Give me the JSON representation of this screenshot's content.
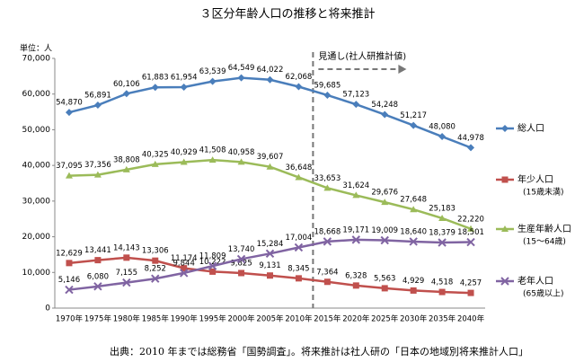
{
  "chart_data": {
    "type": "line",
    "title": "３区分年齢人口の推移と将来推計",
    "y_unit": "単位：人",
    "categories": [
      "1970年",
      "1975年",
      "1980年",
      "1985年",
      "1990年",
      "1995年",
      "2000年",
      "2005年",
      "2010年",
      "2015年",
      "2020年",
      "2025年",
      "2030年",
      "2035年",
      "2040年"
    ],
    "ylim": [
      0,
      70000
    ],
    "yticks": [
      0,
      {
        "value": 10000,
        "label": "10,000"
      },
      {
        "value": 20000,
        "label": "20,000"
      },
      {
        "value": 30000,
        "label": "30,000"
      },
      {
        "value": 40000,
        "label": "40,000"
      },
      {
        "value": 50000,
        "label": "50,000"
      },
      {
        "value": 60000,
        "label": "60,000"
      },
      {
        "value": 70000,
        "label": "70,000"
      }
    ],
    "grid": false,
    "series": [
      {
        "name": "総人口",
        "color": "#4a7ebb",
        "marker": "diamond",
        "values": [
          54870,
          56891,
          60106,
          61883,
          61954,
          63539,
          64549,
          64022,
          62068,
          59685,
          57123,
          54248,
          51217,
          48080,
          44978
        ],
        "value_labels": [
          "54,870",
          "56,891",
          "60,106",
          "61,883",
          "61,954",
          "63,539",
          "64,549",
          "64,022",
          "62,068",
          "59,685",
          "57,123",
          "54,248",
          "51,217",
          "48,080",
          "44,978"
        ]
      },
      {
        "name": "年少人口",
        "legend_note": "(15歳未満)",
        "color": "#c0504d",
        "marker": "square",
        "values": [
          12629,
          13441,
          14143,
          13306,
          11174,
          10222,
          9825,
          9131,
          8345,
          7364,
          6328,
          5563,
          4929,
          4518,
          4257
        ],
        "value_labels": [
          "12,629",
          "13,441",
          "14,143",
          "13,306",
          "11,174",
          "10,222",
          "9,825",
          "9,131",
          "8,345",
          "7,364",
          "6,328",
          "5,563",
          "4,929",
          "4,518",
          "4,257"
        ]
      },
      {
        "name": "生産年齢人口",
        "legend_note": "(15～64歳)",
        "color": "#9bbb59",
        "marker": "triangle",
        "values": [
          37095,
          37356,
          38808,
          40325,
          40929,
          41508,
          40958,
          39607,
          36648,
          33653,
          31624,
          29676,
          27648,
          25183,
          22220
        ],
        "value_labels": [
          "37,095",
          "37,356",
          "38,808",
          "40,325",
          "40,929",
          "41,508",
          "40,958",
          "39,607",
          "36,648",
          "33,653",
          "31,624",
          "29,676",
          "27,648",
          "25,183",
          "22,220"
        ]
      },
      {
        "name": "老年人口",
        "legend_note": "(65歳以上)",
        "color": "#8064a2",
        "marker": "cross",
        "values": [
          5146,
          6080,
          7155,
          8252,
          9844,
          11809,
          13740,
          15284,
          17004,
          18668,
          19171,
          19009,
          18640,
          18379,
          18501
        ],
        "value_labels": [
          "5,146",
          "6,080",
          "7,155",
          "8,252",
          "9,844",
          "11,809",
          "13,740",
          "15,284",
          "17,004",
          "18,668",
          "19,171",
          "19,009",
          "18,640",
          "18,379",
          "18,501"
        ]
      }
    ],
    "annotation": "見通し(社人研推計値)",
    "source": "出典：2010 年までは総務省「国勢調査」。将来推計は社人研の「日本の地域別将来推計人口」"
  }
}
